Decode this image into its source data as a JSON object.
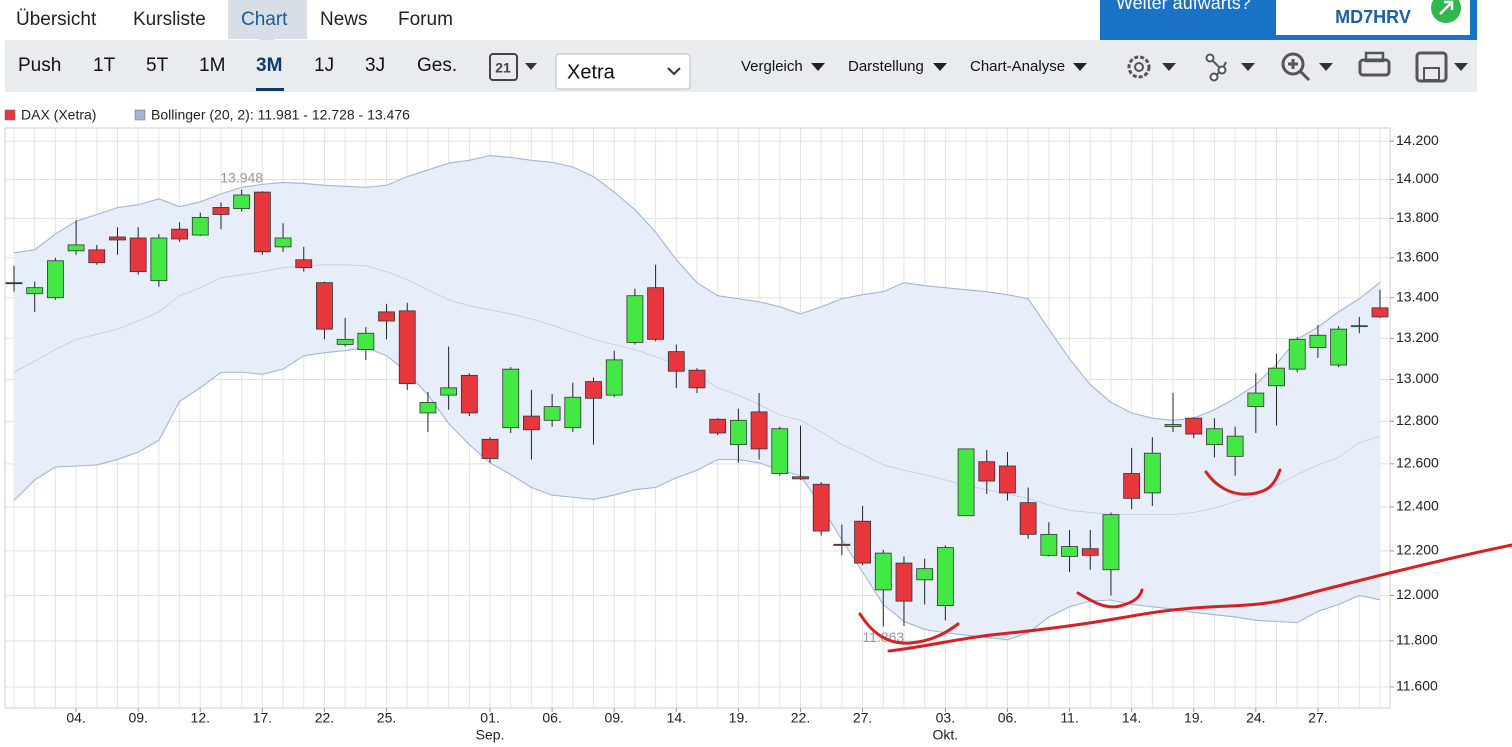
{
  "nav": {
    "tabs": [
      "Übersicht",
      "Kursliste",
      "Chart",
      "News",
      "Forum"
    ]
  },
  "promo": {
    "text": "Weiter aufwärts?",
    "code": "MD7HRV"
  },
  "toolbar": {
    "periods": [
      "Push",
      "1T",
      "5T",
      "1M",
      "3M",
      "1J",
      "3J",
      "Ges."
    ],
    "calendar_day": "21",
    "exchange": "Xetra",
    "menus": [
      "Vergleich",
      "Darstellung",
      "Chart-Analyse"
    ]
  },
  "chart_data": {
    "type": "candlestick",
    "log_scale": true,
    "grid": true,
    "up_color": "#44e844",
    "down_color": "#e8373c",
    "doji_color": "#333333",
    "band_color": "#9fb6d9",
    "band_fill": "#e7eefa",
    "categories": [
      null,
      null,
      null,
      "04.",
      null,
      null,
      "09.",
      null,
      null,
      "12.",
      null,
      null,
      "17.",
      null,
      null,
      "22.",
      null,
      null,
      "25.",
      null,
      null,
      null,
      null,
      [
        "01.",
        "Sep."
      ],
      null,
      null,
      "06.",
      null,
      null,
      "09.",
      null,
      null,
      "14.",
      null,
      null,
      "19.",
      null,
      null,
      "22.",
      null,
      null,
      "27.",
      null,
      null,
      null,
      [
        "03.",
        "Okt."
      ],
      null,
      null,
      "06.",
      null,
      null,
      "11.",
      null,
      null,
      "14.",
      null,
      null,
      "19.",
      null,
      null,
      "24.",
      null,
      null,
      "27.",
      null,
      null,
      null
    ],
    "series": [
      {
        "name": "DAX (Xetra)",
        "color": "#e8373c",
        "open": [
          13475,
          13420,
          13400,
          13635,
          13640,
          13705,
          13700,
          13485,
          13745,
          13715,
          13856,
          13850,
          13935,
          13655,
          13590,
          13475,
          13170,
          13145,
          13330,
          13335,
          12840,
          12925,
          13020,
          12715,
          12770,
          12825,
          12805,
          12770,
          12990,
          12925,
          13180,
          13450,
          13135,
          13045,
          12810,
          12690,
          12845,
          12555,
          12540,
          12505,
          12230,
          12335,
          12025,
          12145,
          12070,
          11955,
          12360,
          12610,
          12590,
          12420,
          12180,
          12175,
          12210,
          12115,
          12555,
          12465,
          12775,
          12815,
          12690,
          12635,
          12870,
          12970,
          13050,
          13155,
          13070,
          13258,
          13350
        ],
        "high": [
          13560,
          13480,
          13600,
          13790,
          13665,
          13755,
          13755,
          13720,
          13780,
          13830,
          13882,
          13948,
          13940,
          13775,
          13655,
          13480,
          13300,
          13255,
          13370,
          13375,
          12940,
          13160,
          13030,
          12725,
          13060,
          12950,
          12930,
          12985,
          13010,
          13140,
          13445,
          13565,
          13170,
          13055,
          12815,
          12860,
          12935,
          12775,
          12780,
          12515,
          12320,
          12405,
          12205,
          12175,
          12165,
          12225,
          12670,
          12665,
          12655,
          12490,
          12330,
          12295,
          12295,
          12375,
          12675,
          12725,
          12935,
          12820,
          12815,
          12775,
          13030,
          13125,
          13205,
          13265,
          13260,
          13305,
          13440
        ],
        "low": [
          13430,
          13330,
          13390,
          13615,
          13565,
          13615,
          13515,
          13455,
          13680,
          13710,
          13745,
          13835,
          13615,
          13630,
          13530,
          13195,
          13160,
          13095,
          13195,
          12950,
          12750,
          12855,
          12825,
          12605,
          12745,
          12620,
          12775,
          12750,
          12690,
          12915,
          13170,
          13185,
          12960,
          12935,
          12735,
          12605,
          12620,
          12545,
          12525,
          12270,
          12180,
          12135,
          11863,
          11865,
          11960,
          11890,
          12360,
          12460,
          12430,
          12255,
          12175,
          12105,
          12115,
          12000,
          12390,
          12405,
          12750,
          12720,
          12630,
          12545,
          12745,
          12780,
          13035,
          13105,
          13060,
          13225,
          13300
        ],
        "close": [
          13475,
          13450,
          13585,
          13665,
          13575,
          13690,
          13530,
          13700,
          13695,
          13805,
          13820,
          13920,
          13630,
          13700,
          13550,
          13245,
          13195,
          13225,
          13285,
          12980,
          12890,
          12960,
          12840,
          12625,
          13050,
          12760,
          12870,
          12915,
          12910,
          13095,
          13410,
          13195,
          13040,
          12960,
          12745,
          12805,
          12670,
          12765,
          12530,
          12290,
          12225,
          12145,
          12190,
          11975,
          12120,
          12215,
          12670,
          12520,
          12465,
          12275,
          12275,
          12220,
          12180,
          12365,
          12440,
          12650,
          12785,
          12740,
          12765,
          12730,
          12935,
          13055,
          13195,
          13215,
          13245,
          13262,
          13305
        ]
      }
    ],
    "bands": {
      "name": "Bollinger (20, 2): 11.981 - 12.728 - 13.476",
      "color": "#9fb6d9",
      "upper": [
        13625,
        13640,
        13720,
        13785,
        13820,
        13855,
        13870,
        13900,
        13860,
        13885,
        13925,
        13960,
        13975,
        13985,
        13980,
        13970,
        13965,
        13960,
        13970,
        14015,
        14050,
        14085,
        14100,
        14125,
        14115,
        14100,
        14090,
        14065,
        14015,
        13935,
        13845,
        13730,
        13590,
        13475,
        13410,
        13395,
        13380,
        13355,
        13320,
        13355,
        13395,
        13415,
        13430,
        13475,
        13460,
        13450,
        13440,
        13430,
        13415,
        13395,
        13245,
        13100,
        12975,
        12890,
        12840,
        12815,
        12805,
        12815,
        12855,
        12910,
        12975,
        13075,
        13195,
        13255,
        13330,
        13395,
        13476
      ],
      "middle": [
        13035,
        13090,
        13145,
        13195,
        13220,
        13245,
        13285,
        13330,
        13410,
        13450,
        13500,
        13515,
        13530,
        13550,
        13560,
        13565,
        13565,
        13560,
        13530,
        13490,
        13440,
        13390,
        13360,
        13340,
        13320,
        13295,
        13265,
        13230,
        13195,
        13170,
        13145,
        13110,
        13075,
        13025,
        12960,
        12925,
        12880,
        12830,
        12805,
        12750,
        12690,
        12645,
        12595,
        12570,
        12550,
        12525,
        12500,
        12480,
        12460,
        12440,
        12410,
        12385,
        12375,
        12365,
        12365,
        12365,
        12365,
        12375,
        12395,
        12425,
        12455,
        12500,
        12550,
        12595,
        12630,
        12700,
        12728
      ],
      "lower": [
        12430,
        12525,
        12585,
        12590,
        12595,
        12620,
        12655,
        12710,
        12895,
        12960,
        13035,
        13035,
        13025,
        13050,
        13115,
        13130,
        13140,
        13155,
        13115,
        13035,
        12925,
        12790,
        12690,
        12605,
        12550,
        12490,
        12455,
        12445,
        12435,
        12455,
        12480,
        12490,
        12535,
        12570,
        12620,
        12620,
        12605,
        12570,
        12545,
        12405,
        12250,
        12105,
        11960,
        11885,
        11850,
        11835,
        11825,
        11815,
        11805,
        11835,
        11905,
        11950,
        11975,
        11980,
        11960,
        11950,
        11940,
        11925,
        11915,
        11905,
        11890,
        11885,
        11880,
        11930,
        11960,
        12000,
        11981
      ]
    },
    "annotations": [
      {
        "value": 13948,
        "label": "13.948"
      },
      {
        "value": 11863,
        "label": "11.863"
      }
    ],
    "ylim": [
      11510,
      14270
    ],
    "yticks": [
      {
        "value": 14200,
        "label": "14.200"
      },
      {
        "value": 14000,
        "label": "14.000"
      },
      {
        "value": 13800,
        "label": "13.800"
      },
      {
        "value": 13600,
        "label": "13.600"
      },
      {
        "value": 13400,
        "label": "13.400"
      },
      {
        "value": 13200,
        "label": "13.200"
      },
      {
        "value": 13000,
        "label": "13.000"
      },
      {
        "value": 12800,
        "label": "12.800"
      },
      {
        "value": 12600,
        "label": "12.600"
      },
      {
        "value": 12400,
        "label": "12.400"
      },
      {
        "value": 12200,
        "label": "12.200"
      },
      {
        "value": 12000,
        "label": "12.000"
      },
      {
        "value": 11800,
        "label": "11.800"
      },
      {
        "value": 11600,
        "label": "11.600"
      }
    ]
  }
}
